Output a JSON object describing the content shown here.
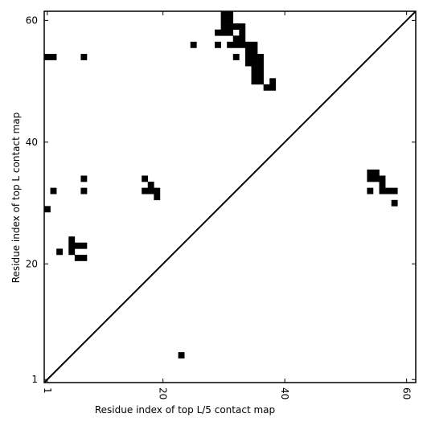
{
  "chart_data": {
    "type": "heatmap",
    "title": "",
    "xlabel": "Residue index of top L/5 contact map",
    "ylabel": "Residue index of top L contact map",
    "xlim": [
      0.5,
      61.5
    ],
    "ylim": [
      0.5,
      61.5
    ],
    "x_ticks": [
      1,
      20,
      40,
      60
    ],
    "x_tick_labels": [
      "1",
      "20",
      "40",
      "60"
    ],
    "y_ticks": [
      1,
      20,
      40,
      60
    ],
    "y_tick_labels": [
      "1",
      "20",
      "40",
      "60"
    ],
    "x_tick_rotation": -90,
    "grid": false,
    "diagonal": {
      "from": [
        0.5,
        0.5
      ],
      "to": [
        61.5,
        61.5
      ]
    },
    "cell_color": "#000000",
    "background_color": "#ffffff",
    "cells": [
      [
        1,
        54
      ],
      [
        2,
        54
      ],
      [
        7,
        54
      ],
      [
        25,
        56
      ],
      [
        29,
        58
      ],
      [
        29,
        56
      ],
      [
        30,
        61
      ],
      [
        30,
        60
      ],
      [
        30,
        59
      ],
      [
        30,
        58
      ],
      [
        31,
        61
      ],
      [
        31,
        60
      ],
      [
        31,
        59
      ],
      [
        31,
        58
      ],
      [
        31,
        56
      ],
      [
        32,
        59
      ],
      [
        32,
        57
      ],
      [
        32,
        56
      ],
      [
        32,
        54
      ],
      [
        33,
        59
      ],
      [
        33,
        58
      ],
      [
        33,
        57
      ],
      [
        33,
        56
      ],
      [
        34,
        56
      ],
      [
        34,
        55
      ],
      [
        34,
        54
      ],
      [
        34,
        53
      ],
      [
        35,
        56
      ],
      [
        35,
        55
      ],
      [
        35,
        54
      ],
      [
        35,
        53
      ],
      [
        35,
        52
      ],
      [
        35,
        51
      ],
      [
        35,
        50
      ],
      [
        36,
        54
      ],
      [
        36,
        53
      ],
      [
        36,
        52
      ],
      [
        36,
        51
      ],
      [
        36,
        50
      ],
      [
        37,
        49
      ],
      [
        38,
        50
      ],
      [
        38,
        49
      ],
      [
        7,
        34
      ],
      [
        2,
        32
      ],
      [
        7,
        32
      ],
      [
        17,
        34
      ],
      [
        17,
        32
      ],
      [
        18,
        33
      ],
      [
        18,
        32
      ],
      [
        19,
        32
      ],
      [
        19,
        31
      ],
      [
        1,
        29
      ],
      [
        5,
        24
      ],
      [
        5,
        23
      ],
      [
        6,
        23
      ],
      [
        7,
        23
      ],
      [
        5,
        22
      ],
      [
        3,
        22
      ],
      [
        6,
        21
      ],
      [
        7,
        21
      ],
      [
        54,
        35
      ],
      [
        55,
        35
      ],
      [
        54,
        34
      ],
      [
        55,
        34
      ],
      [
        56,
        34
      ],
      [
        56,
        33
      ],
      [
        54,
        32
      ],
      [
        56,
        32
      ],
      [
        57,
        32
      ],
      [
        58,
        32
      ],
      [
        58,
        30
      ],
      [
        23,
        5
      ]
    ]
  }
}
